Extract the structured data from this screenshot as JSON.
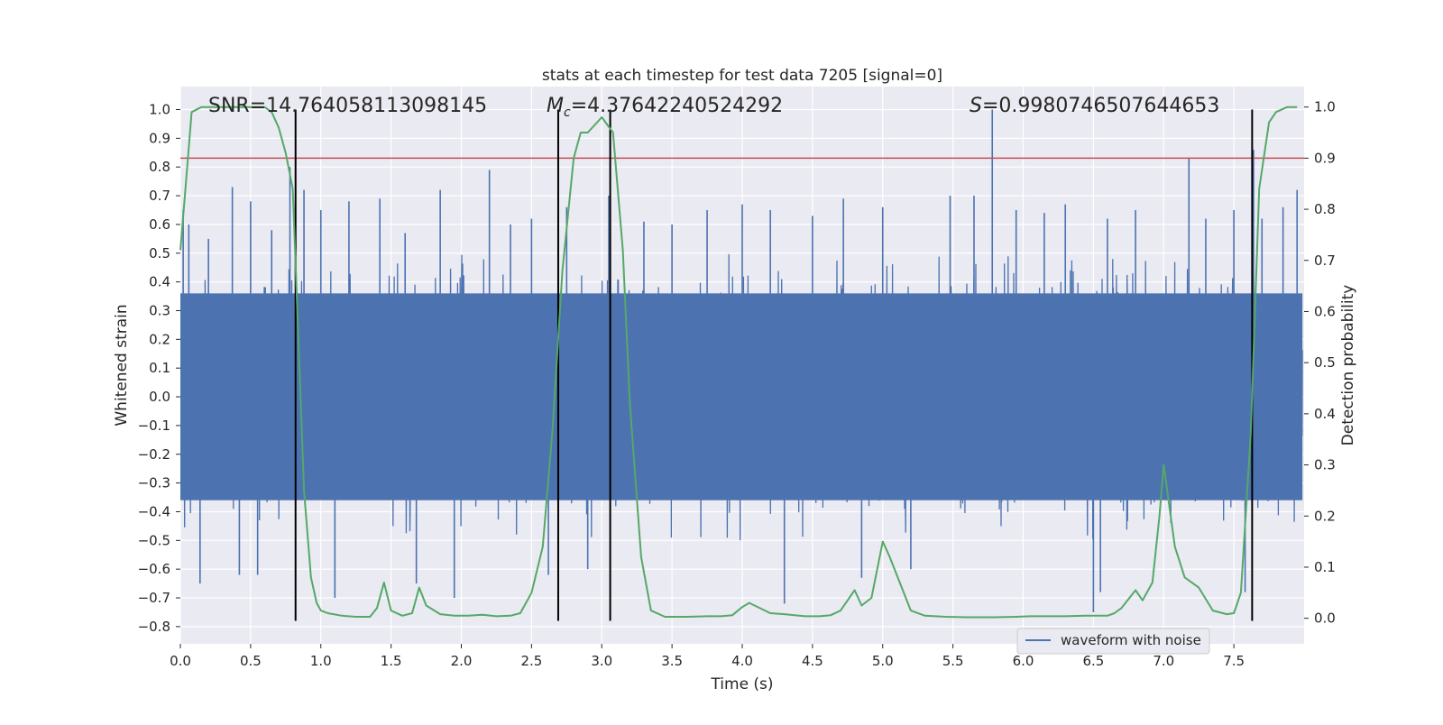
{
  "chart_data": {
    "type": "line",
    "title": "stats at each timestep for test data 7205 [signal=0]",
    "xlabel": "Time (s)",
    "ylabel": "Whitened strain",
    "y2label": "Detection probability",
    "xlim": [
      0.0,
      8.0
    ],
    "ylim": [
      -0.86,
      1.08
    ],
    "y2lim": [
      -0.05,
      1.04
    ],
    "x_ticks": [
      0.0,
      0.5,
      1.0,
      1.5,
      2.0,
      2.5,
      3.0,
      3.5,
      4.0,
      4.5,
      5.0,
      5.5,
      6.0,
      6.5,
      7.0,
      7.5
    ],
    "y_ticks": [
      -0.8,
      -0.7,
      -0.6,
      -0.5,
      -0.4,
      -0.3,
      -0.2,
      -0.1,
      0.0,
      0.1,
      0.2,
      0.3,
      0.4,
      0.5,
      0.6,
      0.7,
      0.8,
      0.9,
      1.0
    ],
    "y2_ticks": [
      0.0,
      0.1,
      0.2,
      0.3,
      0.4,
      0.5,
      0.6,
      0.7,
      0.8,
      0.9,
      1.0
    ],
    "grid": true,
    "legend_position": "lower-right",
    "annotations": {
      "snr": "SNR=14.764058113098145",
      "mc_symbol": "M",
      "mc_sub": "c",
      "mc_value": "=4.37642240524292",
      "s_symbol": "S",
      "s_value": "=0.9980746507644653"
    },
    "series": [
      {
        "name": "waveform with noise",
        "axis": "left",
        "color": "#4c72b0",
        "style": "dense noise, envelope approx. -0.4 to 0.4",
        "spikes": [
          [
            0.02,
            0.65
          ],
          [
            0.06,
            0.6
          ],
          [
            0.14,
            -0.65
          ],
          [
            0.2,
            0.55
          ],
          [
            0.37,
            0.73
          ],
          [
            0.42,
            -0.62
          ],
          [
            0.5,
            0.68
          ],
          [
            0.55,
            -0.62
          ],
          [
            0.65,
            0.58
          ],
          [
            0.78,
            0.8
          ],
          [
            0.88,
            0.72
          ],
          [
            1.0,
            0.65
          ],
          [
            1.1,
            -0.7
          ],
          [
            1.2,
            0.68
          ],
          [
            1.42,
            0.69
          ],
          [
            1.6,
            0.57
          ],
          [
            1.68,
            -0.65
          ],
          [
            1.85,
            0.72
          ],
          [
            1.95,
            -0.7
          ],
          [
            2.2,
            0.79
          ],
          [
            2.35,
            0.6
          ],
          [
            2.5,
            0.62
          ],
          [
            2.62,
            -0.62
          ],
          [
            2.75,
            0.66
          ],
          [
            2.9,
            -0.6
          ],
          [
            3.05,
            0.7
          ],
          [
            3.3,
            0.61
          ],
          [
            3.5,
            0.6
          ],
          [
            3.75,
            0.65
          ],
          [
            4.0,
            0.67
          ],
          [
            4.2,
            0.65
          ],
          [
            4.3,
            -0.72
          ],
          [
            4.5,
            0.63
          ],
          [
            4.72,
            0.69
          ],
          [
            4.85,
            -0.63
          ],
          [
            5.0,
            0.66
          ],
          [
            5.2,
            -0.6
          ],
          [
            5.48,
            0.7
          ],
          [
            5.65,
            0.7
          ],
          [
            5.78,
            1.0
          ],
          [
            5.95,
            0.65
          ],
          [
            6.15,
            0.64
          ],
          [
            6.3,
            0.67
          ],
          [
            6.5,
            -0.75
          ],
          [
            6.55,
            -0.68
          ],
          [
            6.6,
            0.62
          ],
          [
            6.8,
            0.65
          ],
          [
            7.18,
            0.83
          ],
          [
            7.3,
            0.62
          ],
          [
            7.5,
            0.65
          ],
          [
            7.58,
            -0.68
          ],
          [
            7.64,
            0.86
          ],
          [
            7.7,
            0.62
          ],
          [
            7.85,
            0.66
          ],
          [
            7.95,
            0.72
          ]
        ]
      },
      {
        "name": "",
        "axis": "right",
        "color": "#55a868",
        "x": [
          0.0,
          0.03,
          0.08,
          0.15,
          0.3,
          0.45,
          0.6,
          0.65,
          0.7,
          0.75,
          0.8,
          0.84,
          0.88,
          0.93,
          0.97,
          1.0,
          1.05,
          1.15,
          1.25,
          1.35,
          1.4,
          1.45,
          1.5,
          1.58,
          1.65,
          1.7,
          1.75,
          1.85,
          1.95,
          2.05,
          2.15,
          2.25,
          2.35,
          2.42,
          2.5,
          2.58,
          2.65,
          2.72,
          2.8,
          2.85,
          2.9,
          3.0,
          3.08,
          3.15,
          3.2,
          3.28,
          3.35,
          3.45,
          3.6,
          3.75,
          3.85,
          3.93,
          4.0,
          4.05,
          4.2,
          4.3,
          4.45,
          4.55,
          4.63,
          4.7,
          4.75,
          4.8,
          4.85,
          4.92,
          5.0,
          5.05,
          5.15,
          5.2,
          5.3,
          5.45,
          5.6,
          5.8,
          5.95,
          6.05,
          6.3,
          6.45,
          6.6,
          6.65,
          6.7,
          6.8,
          6.85,
          6.92,
          6.97,
          7.0,
          7.08,
          7.15,
          7.25,
          7.35,
          7.45,
          7.5,
          7.55,
          7.62,
          7.68,
          7.75,
          7.8,
          7.88,
          7.95
        ],
        "values": [
          0.72,
          0.82,
          0.99,
          1.0,
          1.0,
          1.0,
          1.0,
          0.99,
          0.96,
          0.91,
          0.84,
          0.55,
          0.25,
          0.08,
          0.03,
          0.015,
          0.01,
          0.005,
          0.003,
          0.003,
          0.02,
          0.07,
          0.015,
          0.005,
          0.01,
          0.06,
          0.025,
          0.008,
          0.005,
          0.005,
          0.007,
          0.004,
          0.005,
          0.01,
          0.05,
          0.14,
          0.37,
          0.68,
          0.9,
          0.95,
          0.95,
          0.98,
          0.95,
          0.72,
          0.42,
          0.12,
          0.015,
          0.003,
          0.003,
          0.004,
          0.004,
          0.006,
          0.022,
          0.03,
          0.01,
          0.008,
          0.004,
          0.004,
          0.006,
          0.015,
          0.035,
          0.055,
          0.025,
          0.04,
          0.15,
          0.12,
          0.05,
          0.015,
          0.005,
          0.003,
          0.002,
          0.002,
          0.003,
          0.004,
          0.004,
          0.005,
          0.005,
          0.01,
          0.02,
          0.055,
          0.035,
          0.07,
          0.2,
          0.3,
          0.14,
          0.08,
          0.06,
          0.015,
          0.008,
          0.01,
          0.05,
          0.36,
          0.84,
          0.97,
          0.99,
          1.0,
          1.0
        ]
      }
    ],
    "threshold": {
      "axis": "right",
      "value": 0.9,
      "color": "#c44e52"
    },
    "vertical_markers": [
      0.82,
      2.69,
      3.06,
      7.63
    ]
  }
}
